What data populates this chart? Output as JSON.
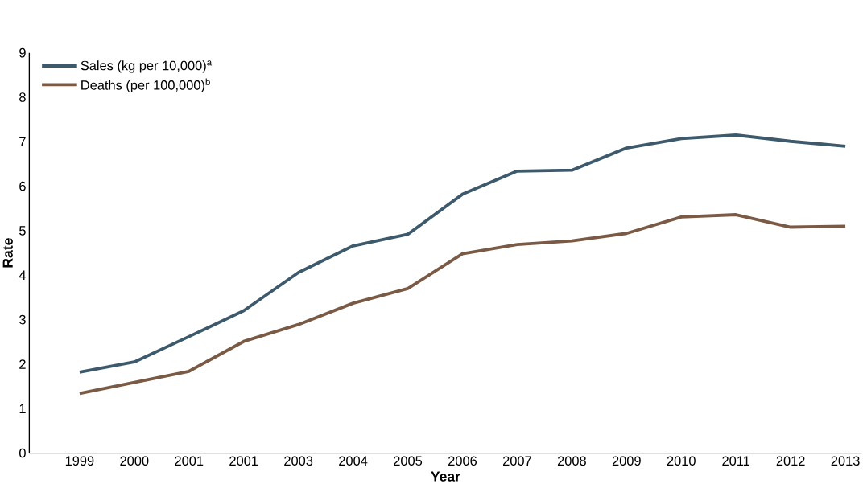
{
  "chart_data": {
    "type": "line",
    "xlabel": "Year",
    "ylabel": "Rate",
    "categories": [
      "1999",
      "2000",
      "2001",
      "2001",
      "2003",
      "2004",
      "2005",
      "2006",
      "2007",
      "2008",
      "2009",
      "2010",
      "2011",
      "2012",
      "2013"
    ],
    "series": [
      {
        "name": "Sales (kg per 10,000)$^{a}$",
        "color": "#3d5a6c",
        "values": [
          1.82,
          2.05,
          2.62,
          3.2,
          4.06,
          4.66,
          4.92,
          5.82,
          6.34,
          6.36,
          6.86,
          7.07,
          7.15,
          7.01,
          6.9
        ]
      },
      {
        "name": "Deaths (per 100,000)$^{b}$",
        "color": "#7a5a45",
        "values": [
          1.34,
          1.59,
          1.84,
          2.51,
          2.89,
          3.37,
          3.7,
          4.48,
          4.69,
          4.77,
          4.94,
          5.31,
          5.36,
          5.08,
          5.1
        ]
      }
    ],
    "ylim": [
      0,
      9
    ],
    "yticks": [
      0,
      1,
      2,
      3,
      4,
      5,
      6,
      7,
      8,
      9
    ],
    "grid": false,
    "legend": "top left",
    "marker": "none",
    "line_style": "solid"
  }
}
